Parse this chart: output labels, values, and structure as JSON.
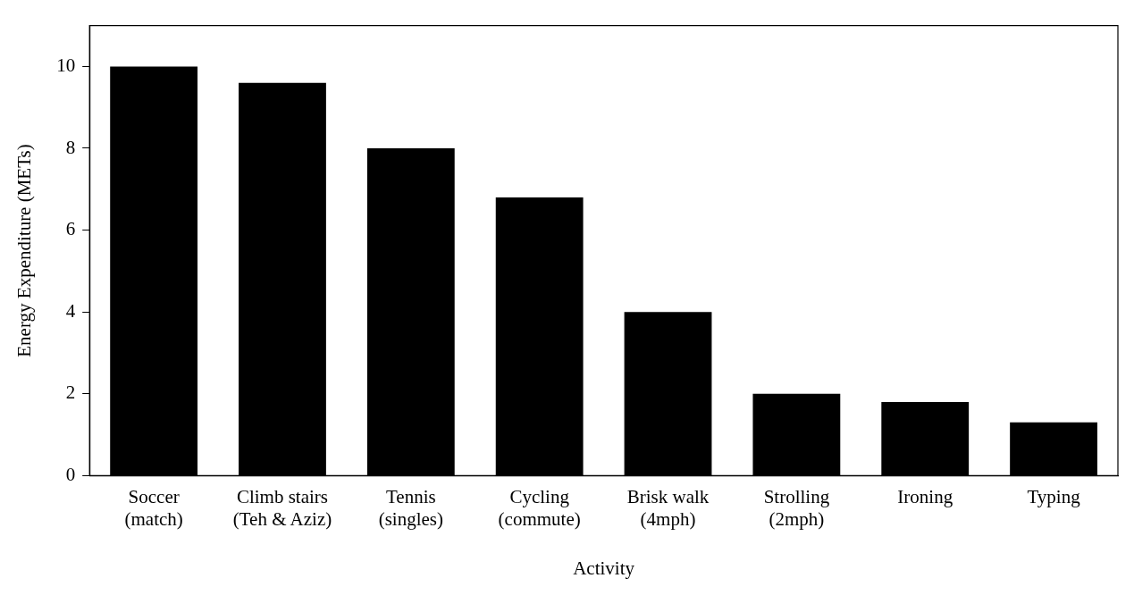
{
  "chart_data": {
    "type": "bar",
    "xlabel": "Activity",
    "ylabel": "Energy Expenditure (METs)",
    "categories": [
      "Soccer\n(match)",
      "Climb stairs\n(Teh & Aziz)",
      "Tennis\n(singles)",
      "Cycling\n(commute)",
      "Brisk walk\n(4mph)",
      "Strolling\n(2mph)",
      "Ironing",
      "Typing"
    ],
    "values": [
      10,
      9.6,
      8,
      6.8,
      4,
      2,
      1.8,
      1.3
    ],
    "color": "#000000",
    "ylim": [
      0,
      11
    ],
    "yticks": [
      0,
      2,
      4,
      6,
      8,
      10
    ],
    "grid": false,
    "legend": false
  }
}
